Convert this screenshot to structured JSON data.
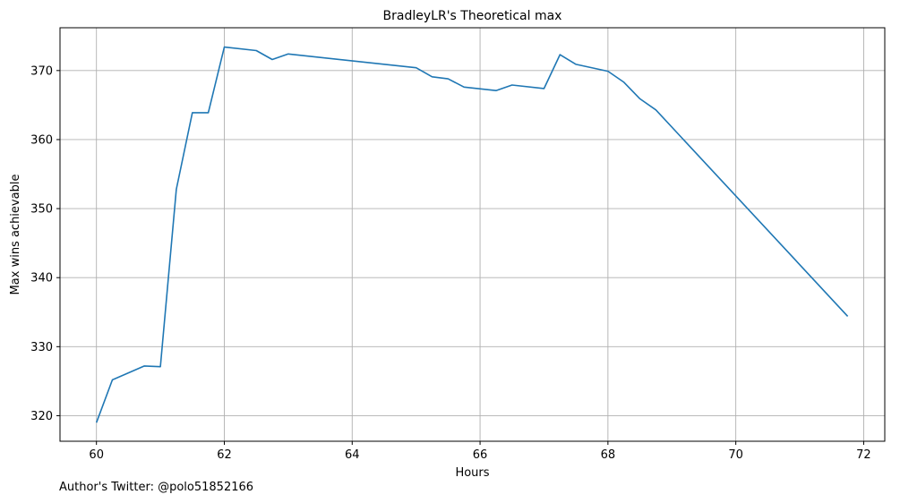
{
  "footnote": "Author's Twitter: @polo51852166",
  "colors": {
    "line": "#1f77b4",
    "grid": "#b0b0b0",
    "axis": "#000000"
  },
  "chart_data": {
    "type": "line",
    "title": "BradleyLR's Theoretical max",
    "xlabel": "Hours",
    "ylabel": "Max wins achievable",
    "xlim": [
      59.43,
      72.33
    ],
    "ylim": [
      316.3,
      376.2
    ],
    "xticks": [
      60,
      62,
      64,
      66,
      68,
      70,
      72
    ],
    "yticks": [
      320,
      330,
      340,
      350,
      360,
      370
    ],
    "grid": true,
    "series": [
      {
        "x": [
          60,
          60.25,
          60.5,
          60.75,
          61,
          61.25,
          61.5,
          61.75,
          62,
          62.5,
          62.75,
          63,
          65,
          65.25,
          65.5,
          65.75,
          66.25,
          66.5,
          67,
          67.25,
          67.5,
          68,
          68.25,
          68.5,
          68.75,
          71.75
        ],
        "y": [
          319.0,
          325.2,
          326.2,
          327.2,
          327.1,
          352.8,
          363.9,
          363.9,
          373.4,
          372.9,
          371.6,
          372.4,
          370.4,
          369.1,
          368.8,
          367.6,
          367.1,
          367.9,
          367.4,
          372.3,
          370.9,
          369.9,
          368.3,
          365.9,
          364.3,
          334.4
        ]
      }
    ]
  }
}
